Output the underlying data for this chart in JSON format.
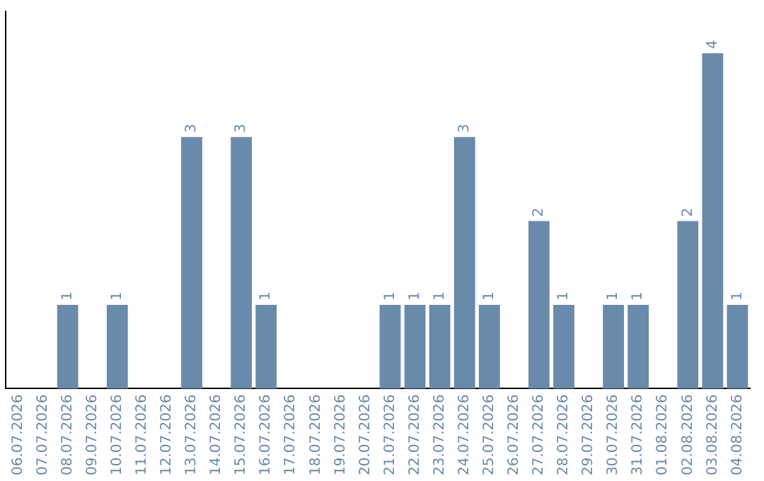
{
  "chart_data": {
    "type": "bar",
    "categories": [
      "06.07.2026",
      "07.07.2026",
      "08.07.2026",
      "09.07.2026",
      "10.07.2026",
      "11.07.2026",
      "12.07.2026",
      "13.07.2026",
      "14.07.2026",
      "15.07.2026",
      "16.07.2026",
      "17.07.2026",
      "18.07.2026",
      "19.07.2026",
      "20.07.2026",
      "21.07.2026",
      "22.07.2026",
      "23.07.2026",
      "24.07.2026",
      "25.07.2026",
      "26.07.2026",
      "27.07.2026",
      "28.07.2026",
      "29.07.2026",
      "30.07.2026",
      "31.07.2026",
      "01.08.2026",
      "02.08.2026",
      "03.08.2026",
      "04.08.2026"
    ],
    "values": [
      0,
      0,
      1,
      0,
      1,
      0,
      0,
      3,
      0,
      3,
      1,
      0,
      0,
      0,
      0,
      1,
      1,
      1,
      3,
      1,
      0,
      2,
      1,
      0,
      1,
      1,
      0,
      2,
      4,
      1
    ],
    "value_labels": [
      null,
      null,
      "1",
      null,
      "1",
      null,
      null,
      "3",
      null,
      "3",
      "1",
      null,
      null,
      null,
      null,
      "1",
      "1",
      "1",
      "3",
      "1",
      null,
      "2",
      "1",
      null,
      "1",
      "1",
      null,
      "2",
      "4",
      "1"
    ],
    "color": "#6a8aab",
    "grid": false,
    "legend": false,
    "tick_labels": "x"
  }
}
